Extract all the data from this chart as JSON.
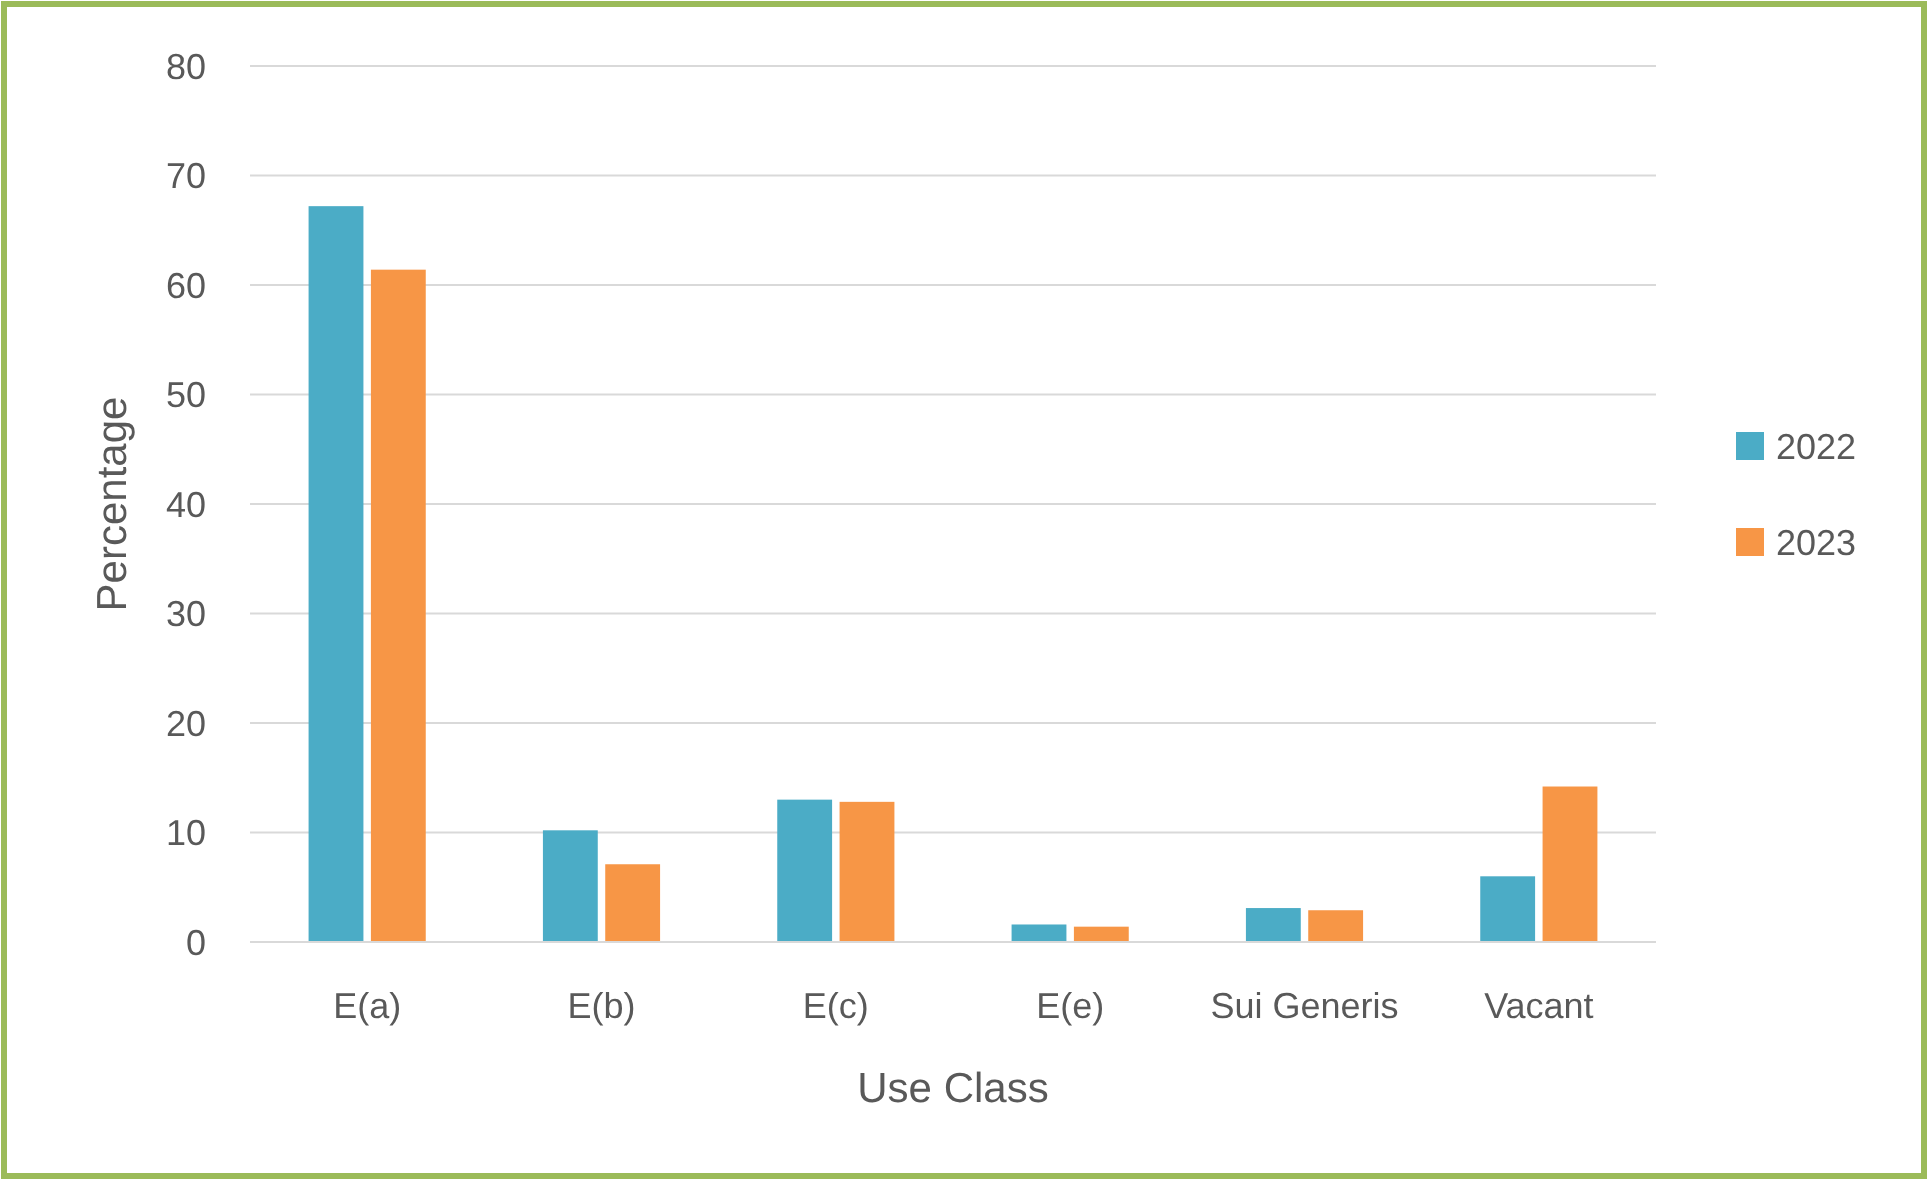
{
  "chart_data": {
    "type": "bar",
    "xlabel": "Use Class",
    "ylabel": "Percentage",
    "categories": [
      "E(a)",
      "E(b)",
      "E(c)",
      "E(e)",
      "Sui Generis",
      "Vacant"
    ],
    "series": [
      {
        "name": "2022",
        "color": "#4bacc6",
        "values": [
          67.2,
          10.2,
          13.0,
          1.6,
          3.1,
          6.0
        ]
      },
      {
        "name": "2023",
        "color": "#f79646",
        "values": [
          61.4,
          7.1,
          12.8,
          1.4,
          2.9,
          14.2
        ]
      }
    ],
    "ylim": [
      0,
      80
    ],
    "yticks": [
      0,
      10,
      20,
      30,
      40,
      50,
      60,
      70,
      80
    ],
    "grid": "y",
    "legend": "right"
  }
}
